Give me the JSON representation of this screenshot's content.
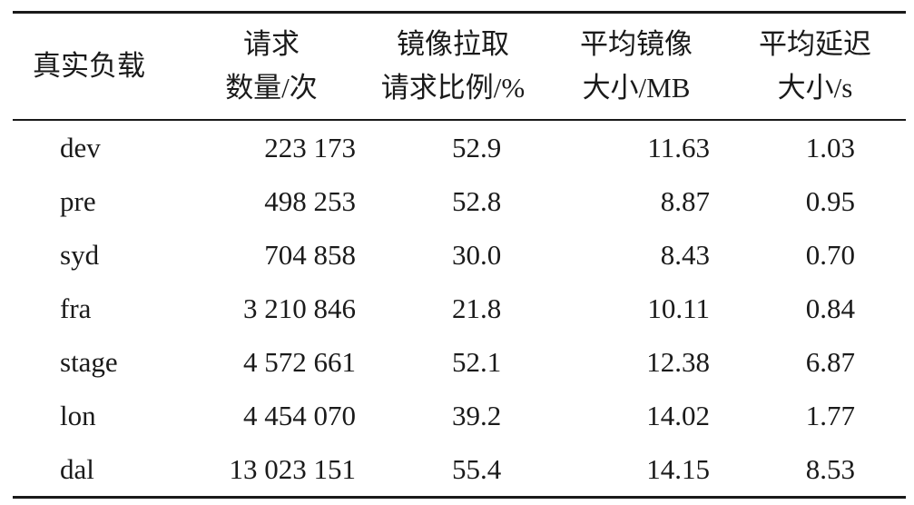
{
  "table": {
    "headers": [
      {
        "lines": [
          "真实负载"
        ]
      },
      {
        "lines": [
          "请求",
          "数量/次"
        ]
      },
      {
        "lines": [
          "镜像拉取",
          "请求比例/%"
        ]
      },
      {
        "lines": [
          "平均镜像",
          "大小/MB"
        ]
      },
      {
        "lines": [
          "平均延迟",
          "大小/s"
        ]
      }
    ],
    "rows": [
      [
        "dev",
        "223 173",
        "52.9",
        "11.63",
        "1.03"
      ],
      [
        "pre",
        "498 253",
        "52.8",
        "8.87",
        "0.95"
      ],
      [
        "syd",
        "704 858",
        "30.0",
        "8.43",
        "0.70"
      ],
      [
        "fra",
        "3 210 846",
        "21.8",
        "10.11",
        "0.84"
      ],
      [
        "stage",
        "4 572 661",
        "52.1",
        "12.38",
        "6.87"
      ],
      [
        "lon",
        "4 454 070",
        "39.2",
        "14.02",
        "1.77"
      ],
      [
        "dal",
        "13 023 151",
        "55.4",
        "14.15",
        "8.53"
      ]
    ]
  }
}
